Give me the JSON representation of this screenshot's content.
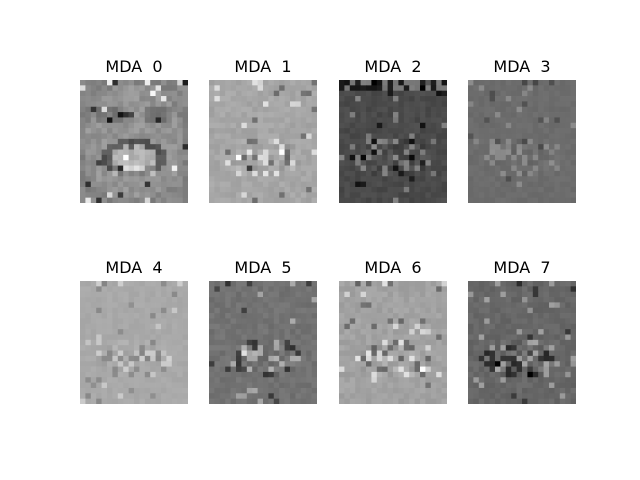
{
  "figure": {
    "background": "#ffffff",
    "panels": [
      {
        "title": "MDA  0",
        "content": "grayscale-eigenface-image",
        "base_gray": "#858585",
        "variation": "high-contrast",
        "pattern": "face"
      },
      {
        "title": "MDA  1",
        "content": "grayscale-eigenface-image",
        "base_gray": "#a6a6a6",
        "variation": "medium",
        "pattern": "mouth"
      },
      {
        "title": "MDA  2",
        "content": "grayscale-eigenface-image",
        "base_gray": "#4a4a4a",
        "variation": "medium",
        "pattern": "mouth-dark"
      },
      {
        "title": "MDA  3",
        "content": "grayscale-eigenface-image",
        "base_gray": "#6c6c6c",
        "variation": "low",
        "pattern": "mouth"
      },
      {
        "title": "MDA  4",
        "content": "grayscale-eigenface-image",
        "base_gray": "#a9a9a9",
        "variation": "low",
        "pattern": "mouth"
      },
      {
        "title": "MDA  5",
        "content": "grayscale-eigenface-image",
        "base_gray": "#727272",
        "variation": "medium",
        "pattern": "mouth"
      },
      {
        "title": "MDA  6",
        "content": "grayscale-eigenface-image",
        "base_gray": "#a2a2a2",
        "variation": "medium",
        "pattern": "mouth"
      },
      {
        "title": "MDA  7",
        "content": "grayscale-eigenface-image",
        "base_gray": "#676767",
        "variation": "medium",
        "pattern": "mouth"
      }
    ]
  }
}
